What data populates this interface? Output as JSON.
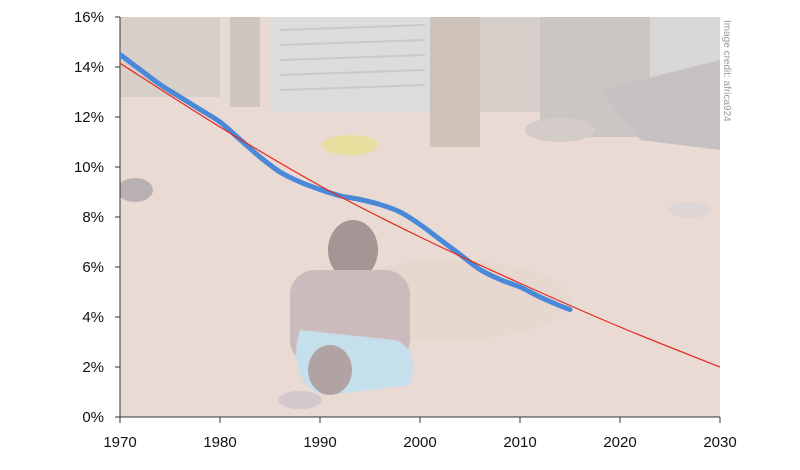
{
  "chart_data": {
    "type": "line",
    "title": "",
    "xlabel": "",
    "ylabel": "",
    "xlim": [
      1970,
      2030
    ],
    "ylim": [
      0,
      16
    ],
    "x_ticks": [
      "1970",
      "1980",
      "1990",
      "2000",
      "2010",
      "2020",
      "2030"
    ],
    "y_ticks": [
      "0%",
      "2%",
      "4%",
      "6%",
      "8%",
      "10%",
      "12%",
      "14%",
      "16%"
    ],
    "grid": false,
    "legend": "none",
    "background": "photograph of a child sitting on dirt ground in front of corrugated-iron shacks, faded",
    "credit": "Image credit: africa924",
    "series": [
      {
        "color": "#4a88d8",
        "style": "thick",
        "x": [
          1970,
          1972,
          1974,
          1976,
          1978,
          1980,
          1982,
          1984,
          1986,
          1988,
          1990,
          1992,
          1994,
          1996,
          1998,
          2000,
          2002,
          2004,
          2006,
          2008,
          2010,
          2012,
          2014,
          2015
        ],
        "y": [
          14.5,
          13.9,
          13.3,
          12.8,
          12.3,
          11.8,
          11.1,
          10.4,
          9.8,
          9.4,
          9.1,
          8.85,
          8.7,
          8.5,
          8.2,
          7.7,
          7.1,
          6.5,
          5.9,
          5.5,
          5.2,
          4.8,
          4.45,
          4.3
        ]
      },
      {
        "color": "#e8261c",
        "style": "thin",
        "x": [
          1970,
          1980,
          1990,
          2000,
          2010,
          2020,
          2030
        ],
        "y": [
          14.15,
          11.6,
          9.25,
          7.2,
          5.35,
          3.6,
          2.0
        ]
      }
    ]
  }
}
